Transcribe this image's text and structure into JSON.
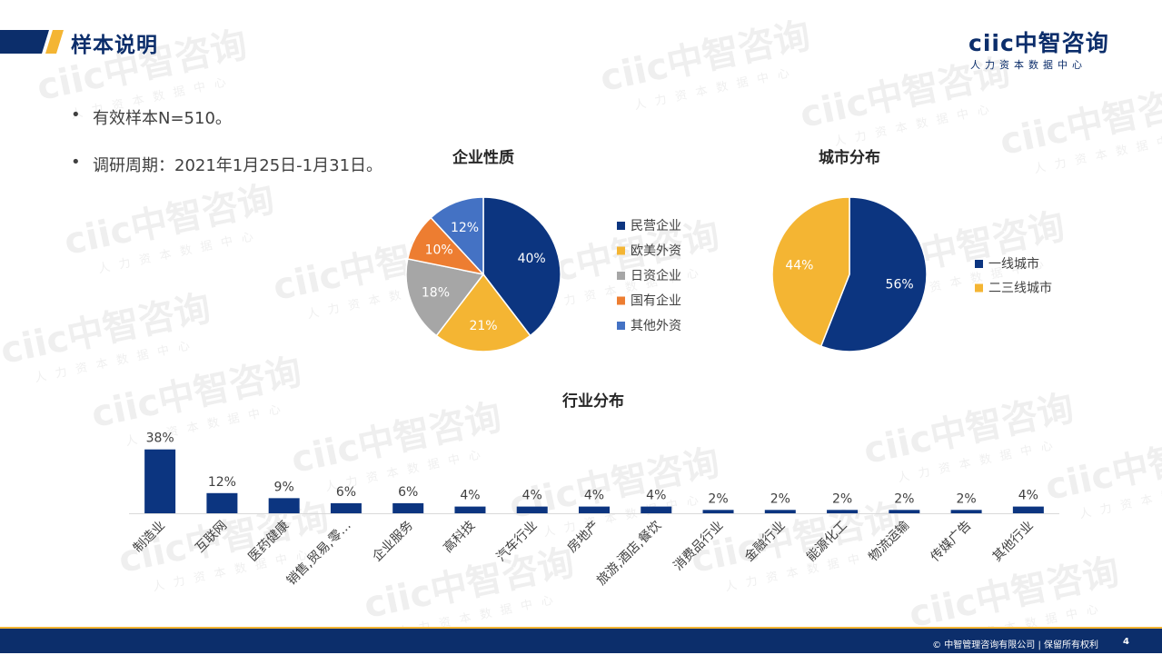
{
  "header": {
    "title": "样本说明",
    "logo_main": "ciic中智咨询",
    "logo_sub": "人力资本数据中心",
    "accent": "#0c2e6b",
    "gold": "#f4b533"
  },
  "bullets": [
    "有效样本N=510。",
    "调研周期：2021年1月25日-1月31日。"
  ],
  "chart_data": [
    {
      "type": "pie",
      "title": "企业性质",
      "categories": [
        "民营企业",
        "欧美外资",
        "日资企业",
        "国有企业",
        "其他外资"
      ],
      "values": [
        40,
        21,
        18,
        10,
        12
      ],
      "labels": [
        "40%",
        "21%",
        "18%",
        "10%",
        "12%"
      ],
      "colors": [
        "#0c3580",
        "#f4b533",
        "#a6a6a6",
        "#ed7d31",
        "#4472c4"
      ],
      "legend": "right"
    },
    {
      "type": "pie",
      "title": "城市分布",
      "categories": [
        "一线城市",
        "二三线城市"
      ],
      "values": [
        56,
        44
      ],
      "labels": [
        "56%",
        "44%"
      ],
      "colors": [
        "#0c3580",
        "#f4b533"
      ],
      "legend": "right"
    },
    {
      "type": "bar",
      "title": "行业分布",
      "categories": [
        "制造业",
        "互联网",
        "医药健康",
        "销售,贸易,零…",
        "企业服务",
        "高科技",
        "汽车行业",
        "房地产",
        "旅游,酒店,餐饮",
        "消费品行业",
        "金融行业",
        "能源化工",
        "物流运输",
        "传媒广告",
        "其他行业"
      ],
      "values": [
        38,
        12,
        9,
        6,
        6,
        4,
        4,
        4,
        4,
        2,
        2,
        2,
        2,
        2,
        4
      ],
      "labels": [
        "38%",
        "12%",
        "9%",
        "6%",
        "6%",
        "4%",
        "4%",
        "4%",
        "4%",
        "2%",
        "2%",
        "2%",
        "2%",
        "2%",
        "4%"
      ],
      "color": "#0c3580",
      "ylim": [
        0,
        40
      ]
    }
  ],
  "footer": {
    "copyright": "© 中智管理咨询有限公司 | 保留所有权利",
    "page": "4"
  },
  "watermark": {
    "main": "ciic中智咨询",
    "sub": "人力资本数据中心"
  }
}
